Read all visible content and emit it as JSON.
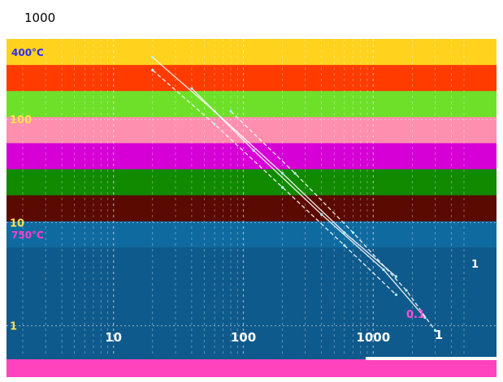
{
  "chart_data": {
    "type": "line",
    "x_scale": "log",
    "y_scale": "log",
    "x_ticks": [
      "10",
      "100",
      "1000"
    ],
    "y_ticks_left": [
      "1000",
      "100",
      "10",
      "1"
    ],
    "y_ticks_right": [
      "1",
      "0.1"
    ],
    "bands": [
      {
        "label": "400°C",
        "color": "#ffd21e"
      },
      {
        "label": "",
        "color": "#ff3b00"
      },
      {
        "label": "",
        "color": "#6ee02a"
      },
      {
        "label": "",
        "color": "#ff8fae"
      },
      {
        "label": "",
        "color": "#d600d6"
      },
      {
        "label": "",
        "color": "#118a00"
      },
      {
        "label": "",
        "color": "#5a0a00"
      },
      {
        "label": "750°C",
        "color": "#0f6aa0"
      }
    ],
    "series": [
      {
        "values": [
          [
            20,
            400
          ],
          [
            60,
            120
          ],
          [
            200,
            30
          ],
          [
            600,
            8
          ],
          [
            1500,
            3
          ]
        ]
      },
      {
        "values": [
          [
            20,
            300
          ],
          [
            60,
            90
          ],
          [
            200,
            22
          ],
          [
            600,
            6
          ],
          [
            1500,
            2
          ]
        ]
      },
      {
        "values": [
          [
            40,
            200
          ],
          [
            120,
            50
          ],
          [
            400,
            12
          ],
          [
            1200,
            3.5
          ],
          [
            2500,
            1.2
          ]
        ]
      },
      {
        "values": [
          [
            80,
            120
          ],
          [
            250,
            30
          ],
          [
            700,
            8
          ],
          [
            1800,
            2.2
          ],
          [
            3000,
            0.9
          ]
        ]
      }
    ],
    "grid": true,
    "legend": "none"
  },
  "colors": {
    "background": "#ffffff",
    "lower_panel": "#0f5a8c",
    "footer_strip": "#ff2fb8",
    "line": "#ffffff"
  }
}
